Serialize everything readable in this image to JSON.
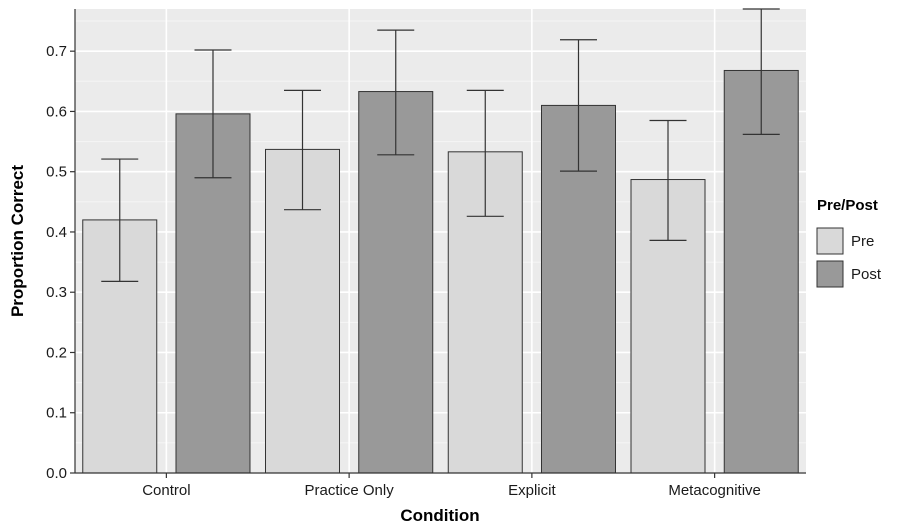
{
  "chart_data": {
    "type": "bar",
    "title": "",
    "xlabel": "Condition",
    "ylabel": "Proportion Correct",
    "categories": [
      "Control",
      "Practice Only",
      "Explicit",
      "Metacognitive"
    ],
    "ylim": [
      0,
      0.77
    ],
    "yticks": [
      0.0,
      0.1,
      0.2,
      0.3,
      0.4,
      0.5,
      0.6,
      0.7
    ],
    "ytick_labels": [
      "0.0",
      "0.1",
      "0.2",
      "0.3",
      "0.4",
      "0.5",
      "0.6",
      "0.7"
    ],
    "grid": true,
    "legend": {
      "title": "Pre/Post",
      "placement": "right"
    },
    "series": [
      {
        "name": "Pre",
        "color": "#d9d9d9",
        "values": [
          0.42,
          0.537,
          0.533,
          0.487
        ],
        "error_low": [
          0.318,
          0.437,
          0.426,
          0.386
        ],
        "error_high": [
          0.521,
          0.635,
          0.635,
          0.585
        ]
      },
      {
        "name": "Post",
        "color": "#999999",
        "values": [
          0.596,
          0.633,
          0.61,
          0.668
        ],
        "error_low": [
          0.49,
          0.528,
          0.501,
          0.562
        ],
        "error_high": [
          0.702,
          0.735,
          0.719,
          0.77
        ]
      }
    ]
  }
}
